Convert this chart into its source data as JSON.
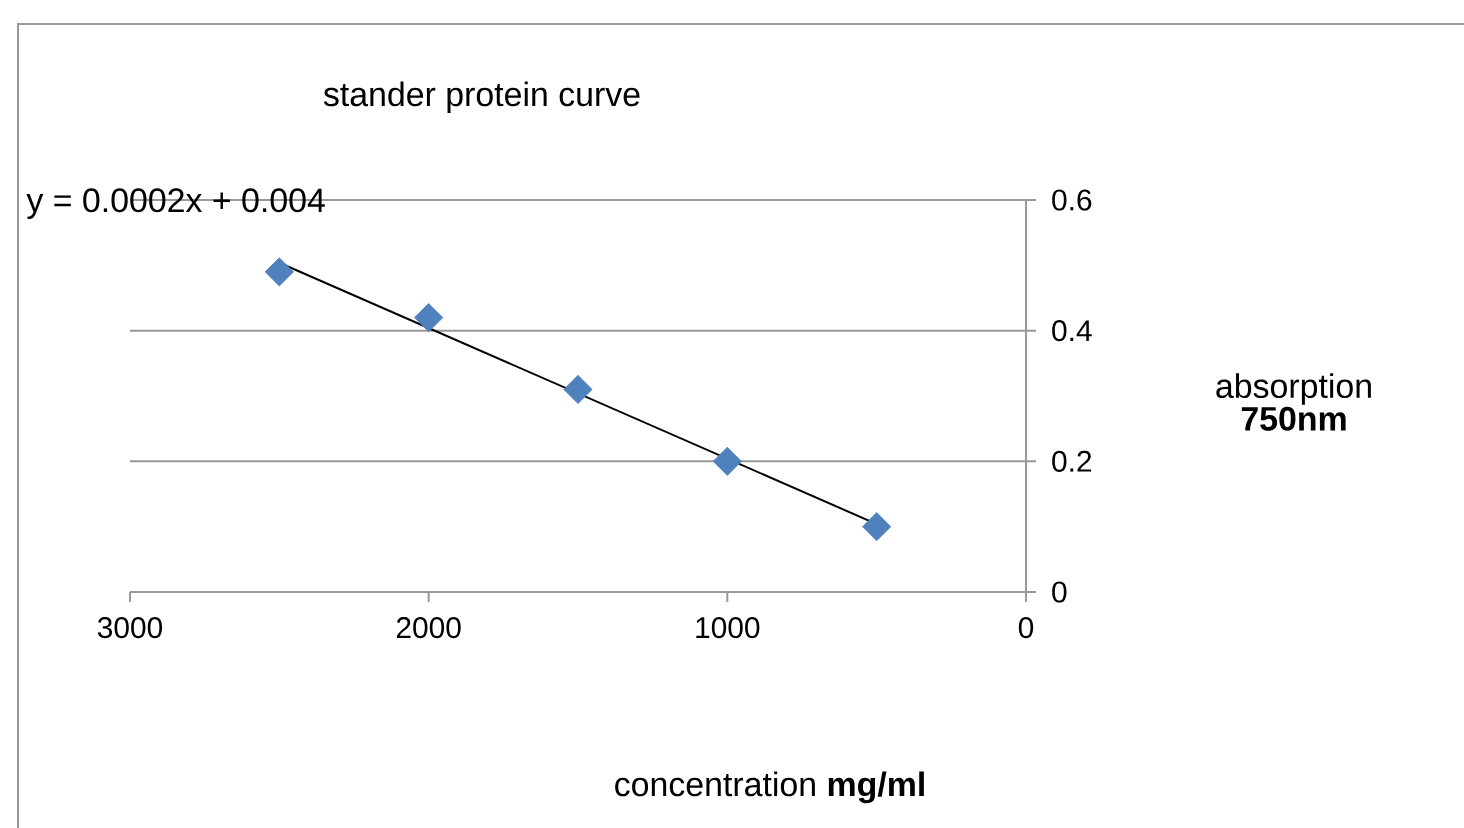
{
  "chart_data": {
    "type": "scatter",
    "title": "stander protein curve",
    "xlabel": "concentration **mg/ml**",
    "ylabel": "absorption **750nm**",
    "annotations": [
      "y = 0.0002x + 0.004"
    ],
    "xlim": [
      3000,
      0
    ],
    "ylim": [
      0,
      0.6
    ],
    "xticks": [
      3000,
      2000,
      1000,
      0
    ],
    "yticks": [
      0,
      0.2,
      0.4,
      0.6
    ],
    "grid": "y",
    "series": [
      {
        "color": "#4f81bd",
        "marker": "diamond",
        "x": [
          2500,
          2000,
          1500,
          1000,
          500
        ],
        "values": [
          0.49,
          0.42,
          0.31,
          0.2,
          0.1
        ]
      },
      {
        "type": "line",
        "color": "#000000",
        "marker": "none",
        "x": [
          2500,
          500
        ],
        "values": [
          0.504,
          0.104
        ]
      }
    ]
  }
}
